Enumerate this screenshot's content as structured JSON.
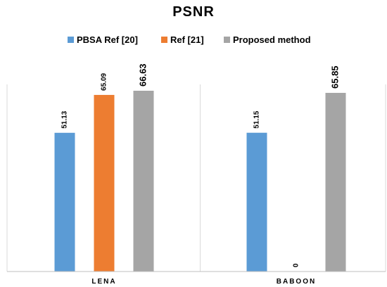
{
  "chart_data": {
    "type": "bar",
    "title": "PSNR",
    "categories": [
      "LENA",
      "BABOON"
    ],
    "series": [
      {
        "name": "PBSA Ref [20]",
        "color": "#5B9BD5",
        "values": [
          51.13,
          51.15
        ],
        "labels": [
          "51.13",
          "51.15"
        ]
      },
      {
        "name": "Ref [21]",
        "color": "#ED7D31",
        "values": [
          65.09,
          0
        ],
        "labels": [
          "65.09",
          "0"
        ]
      },
      {
        "name": "Proposed method",
        "color": "#A5A5A5",
        "values": [
          66.63,
          65.85
        ],
        "labels": [
          "66.63",
          "65.85"
        ]
      }
    ],
    "ylim": [
      0,
      70
    ],
    "xlabel": "",
    "ylabel": "",
    "grid": false,
    "legend_position": "top-center"
  }
}
